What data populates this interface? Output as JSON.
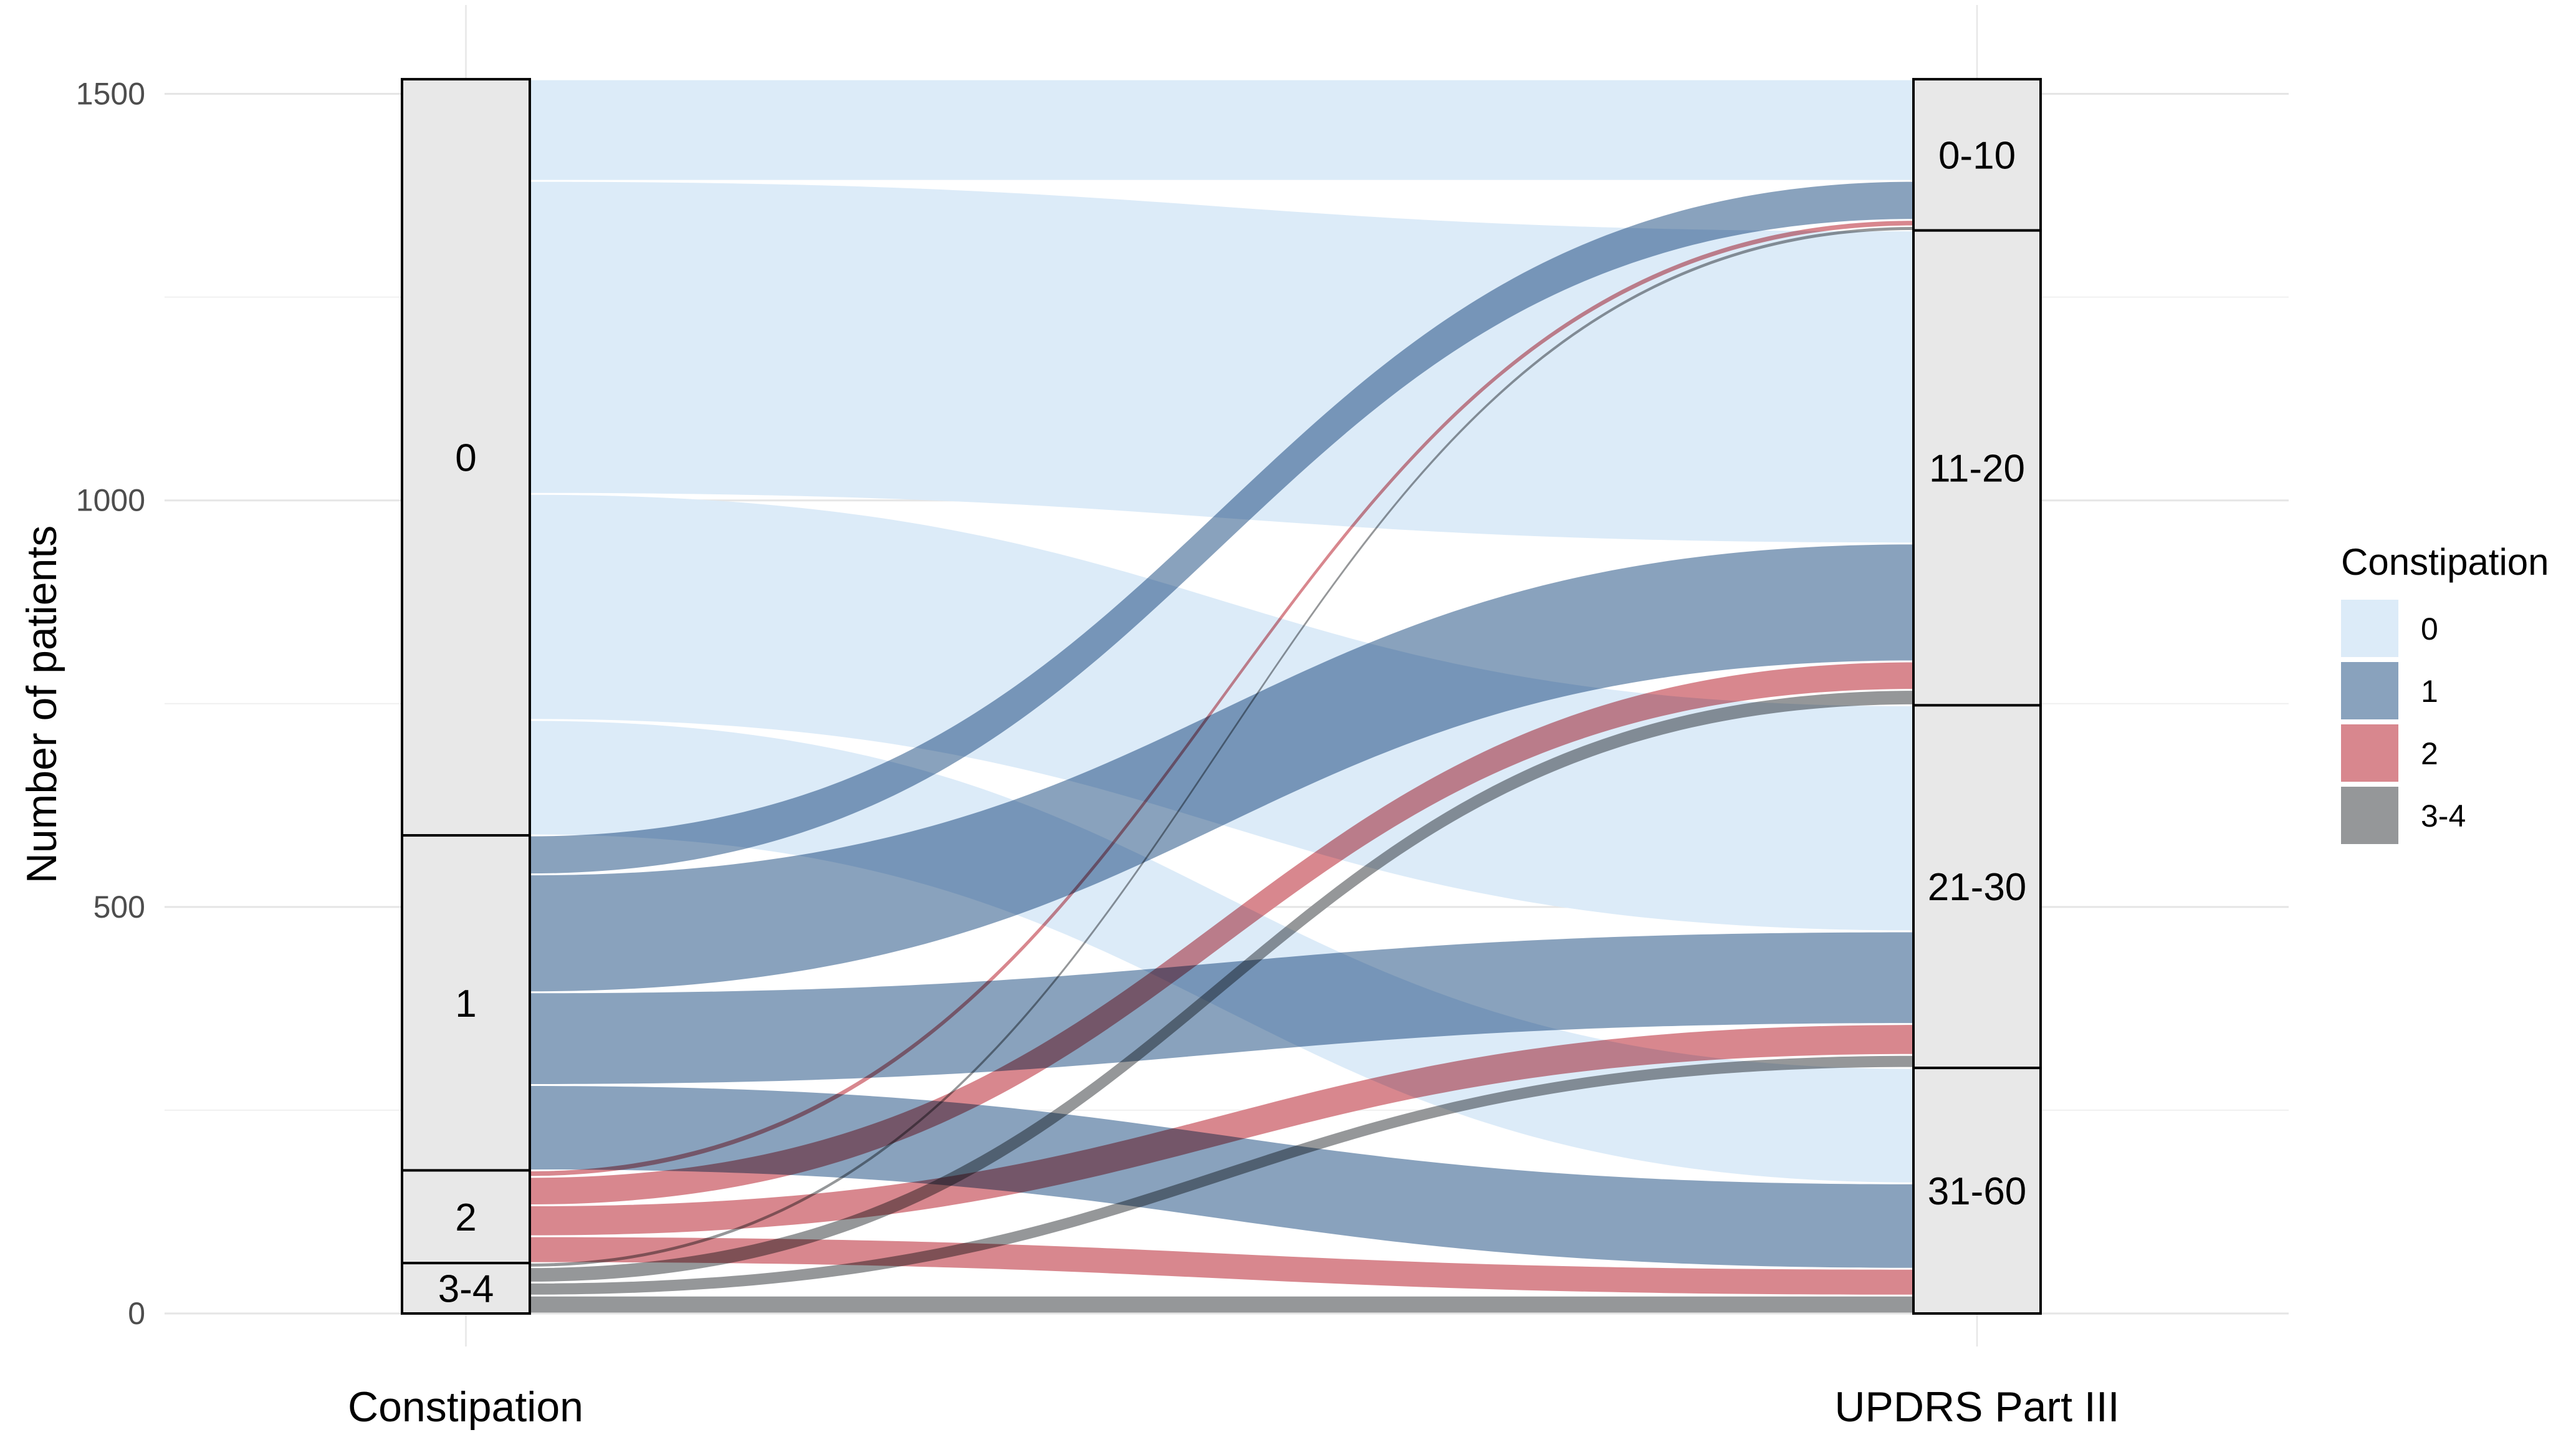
{
  "figure": {
    "y_axis_title": "Number of patients",
    "x_axis_left_title": "Constipation",
    "x_axis_right_title": "UPDRS Part III"
  },
  "legend": {
    "title": "Constipation",
    "items": [
      {
        "label": "0",
        "color": "#dcebf8"
      },
      {
        "label": "1",
        "color": "#89a2bd"
      },
      {
        "label": "2",
        "color": "#d8878e"
      },
      {
        "label": "3-4",
        "color": "#959799"
      }
    ]
  },
  "chart_data": {
    "type": "alluvial",
    "title": "",
    "ylabel": "Number of patients",
    "xlabel_left": "Constipation",
    "xlabel_right": "UPDRS Part III",
    "ylim": [
      0,
      1523
    ],
    "y_ticks": [
      0,
      500,
      1000,
      1500
    ],
    "y_minor_ticks": [
      250,
      750,
      1250
    ],
    "grid": "horizontal major and minor, vertical minor at each axis",
    "legend_position": "right",
    "left_axis_name": "Constipation",
    "right_axis_name": "UPDRS Part III",
    "left_strata": [
      {
        "label": "0",
        "value": 930
      },
      {
        "label": "1",
        "value": 412
      },
      {
        "label": "2",
        "value": 114
      },
      {
        "label": "3-4",
        "value": 62
      }
    ],
    "right_strata": [
      {
        "label": "0-10",
        "value": 186
      },
      {
        "label": "11-20",
        "value": 584
      },
      {
        "label": "21-30",
        "value": 446
      },
      {
        "label": "31-60",
        "value": 302
      }
    ],
    "flows": [
      {
        "from": "0",
        "to": "0-10",
        "value": 125
      },
      {
        "from": "0",
        "to": "11-20",
        "value": 385
      },
      {
        "from": "0",
        "to": "21-30",
        "value": 278
      },
      {
        "from": "0",
        "to": "31-60",
        "value": 142
      },
      {
        "from": "1",
        "to": "0-10",
        "value": 48
      },
      {
        "from": "1",
        "to": "11-20",
        "value": 145
      },
      {
        "from": "1",
        "to": "21-30",
        "value": 114
      },
      {
        "from": "1",
        "to": "31-60",
        "value": 105
      },
      {
        "from": "2",
        "to": "0-10",
        "value": 8
      },
      {
        "from": "2",
        "to": "11-20",
        "value": 35
      },
      {
        "from": "2",
        "to": "21-30",
        "value": 38
      },
      {
        "from": "2",
        "to": "31-60",
        "value": 33
      },
      {
        "from": "3-4",
        "to": "0-10",
        "value": 5
      },
      {
        "from": "3-4",
        "to": "11-20",
        "value": 19
      },
      {
        "from": "3-4",
        "to": "21-30",
        "value": 16
      },
      {
        "from": "3-4",
        "to": "31-60",
        "value": 22
      }
    ],
    "colors": {
      "0": "#dcebf8",
      "1": "#89a2bd",
      "2": "#d8878e",
      "3-4": "#959799"
    },
    "stratum_fill": "#e8e8e8",
    "stratum_border": "#000000",
    "grid_major_color": "#e5e5e5",
    "grid_minor_color": "#f0f0f0",
    "tick_text_color": "#4d4d4d"
  }
}
